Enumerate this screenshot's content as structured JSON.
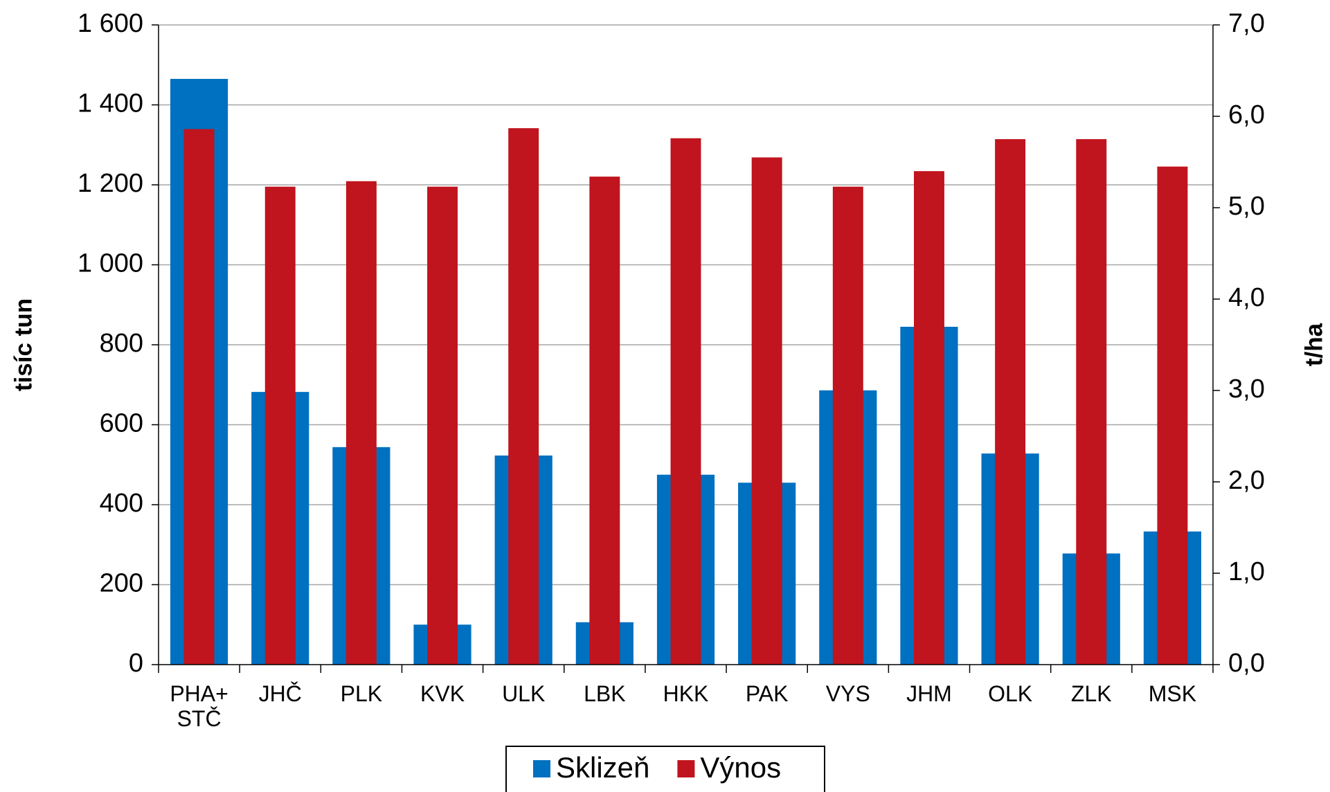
{
  "chart_data": {
    "type": "bar",
    "categories": [
      "PHA+\nSTČ",
      "JHČ",
      "PLK",
      "KVK",
      "ULK",
      "LBK",
      "HKK",
      "PAK",
      "VYS",
      "JHM",
      "OLK",
      "ZLK",
      "MSK"
    ],
    "series": [
      {
        "name": "Sklizeň",
        "color": "#0070c0",
        "values": [
          1465,
          682,
          544,
          100,
          523,
          106,
          475,
          455,
          686,
          845,
          528,
          278,
          333
        ]
      },
      {
        "name": "Výnos",
        "color": "#c0141e",
        "axis": "y2",
        "values": [
          5.86,
          5.23,
          5.29,
          5.23,
          5.87,
          5.34,
          5.76,
          5.55,
          5.23,
          5.4,
          5.75,
          5.75,
          5.45
        ]
      }
    ],
    "ylabel": "tisíc tun",
    "y2label": "t/ha",
    "ylim": [
      0,
      1600
    ],
    "yticks": [
      0,
      200,
      400,
      600,
      800,
      {
        "value": 1000,
        "label": "1 000"
      },
      {
        "value": 1200,
        "label": "1 200"
      },
      {
        "value": 1400,
        "label": "1 400"
      },
      {
        "value": 1600,
        "label": "1 600"
      }
    ],
    "y2lim": [
      0,
      7
    ],
    "y2ticks": [
      {
        "value": 0,
        "label": "0,0"
      },
      {
        "value": 1,
        "label": "1,0"
      },
      {
        "value": 2,
        "label": "2,0"
      },
      {
        "value": 3,
        "label": "3,0"
      },
      {
        "value": 4,
        "label": "4,0"
      },
      {
        "value": 5,
        "label": "5,0"
      },
      {
        "value": 6,
        "label": "6,0"
      },
      {
        "value": 7,
        "label": "7,0"
      }
    ],
    "grid": true,
    "legend": "bottom"
  }
}
